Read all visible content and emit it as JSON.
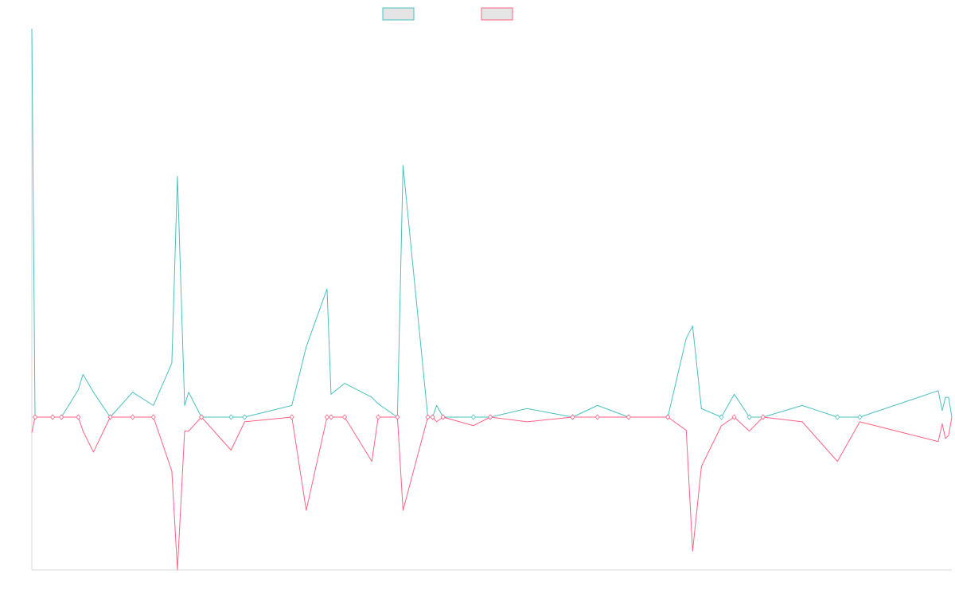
{
  "colors": {
    "series_teal": "#4bc0c0",
    "series_pink": "#ff6384",
    "legend_fill": "#e5e5e5",
    "axis": "#d9d9d9"
  },
  "chart_data": {
    "type": "line",
    "title": "",
    "xlabel": "",
    "ylabel": "",
    "ylim": [
      -1,
      1
    ],
    "grid": false,
    "legend_position": "top-center",
    "legend": [
      {
        "label": "",
        "color": "#4bc0c0"
      },
      {
        "label": "",
        "color": "#ff6384"
      }
    ],
    "x": [
      0,
      4,
      26,
      37,
      58,
      64,
      77,
      98,
      126,
      152,
      175,
      182,
      191,
      196,
      212,
      249,
      266,
      325,
      343,
      369,
      374,
      391,
      425,
      433,
      457,
      464,
      495,
      501,
      506,
      514,
      552,
      573,
      619,
      676,
      707,
      746,
      795,
      818,
      826,
      837,
      862,
      878,
      897,
      914,
      963,
      1007,
      1035,
      1133,
      1138,
      1142,
      1146,
      1150
    ],
    "series": [
      {
        "values": [
          1.0,
          0.0,
          0.0,
          0.0,
          0.07,
          0.11,
          0.064,
          0.0,
          0.064,
          0.03,
          0.139,
          0.62,
          0.03,
          0.064,
          0.0,
          0.0,
          0.0,
          0.03,
          0.181,
          0.33,
          0.059,
          0.087,
          0.051,
          0.034,
          0.0,
          0.648,
          0.0,
          0.0,
          0.03,
          0.0,
          0.0,
          0.0,
          0.022,
          0.0,
          0.03,
          0.0,
          0.0,
          0.203,
          0.234,
          0.022,
          0.0,
          0.059,
          0.0,
          0.0,
          0.03,
          0.0,
          0.0,
          0.068,
          0.017,
          0.051,
          0.051,
          0.0
        ]
      },
      {
        "values": [
          -0.04,
          0.0,
          0.0,
          0.0,
          0.0,
          -0.036,
          -0.09,
          0.0,
          0.0,
          0.0,
          -0.139,
          -0.4,
          -0.036,
          -0.036,
          0.0,
          -0.085,
          -0.012,
          0.0,
          -0.24,
          0.0,
          0.0,
          0.0,
          -0.114,
          0.0,
          0.0,
          -0.24,
          0.0,
          0.0,
          -0.012,
          0.0,
          -0.022,
          0.0,
          -0.012,
          0.0,
          0.0,
          0.0,
          0.0,
          -0.034,
          -0.345,
          -0.127,
          -0.022,
          0.0,
          -0.036,
          0.0,
          -0.012,
          -0.114,
          -0.012,
          -0.063,
          -0.017,
          -0.055,
          -0.047,
          0.0
        ]
      }
    ]
  }
}
